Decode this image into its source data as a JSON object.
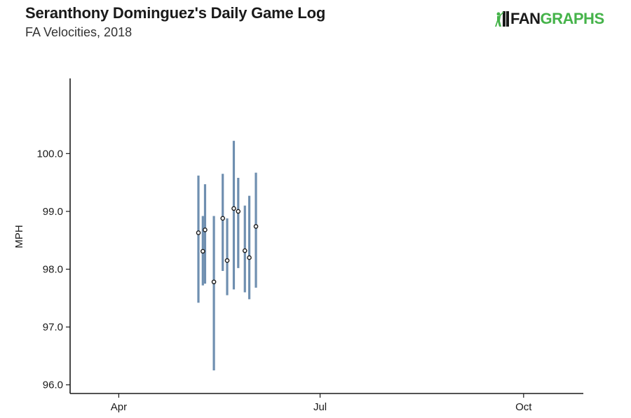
{
  "header": {
    "title": "Seranthony Dominguez's Daily Game Log",
    "subtitle": "FA Velocities, 2018"
  },
  "logo": {
    "text_fan": "FAN",
    "text_graphs": "GRAPHS",
    "icon": "batter-silhouette-icon",
    "colors": {
      "fan": "#1a1a1a",
      "graphs": "#45b34a"
    }
  },
  "chart_data": {
    "type": "errorbar",
    "title": "Seranthony Dominguez's Daily Game Log",
    "subtitle": "FA Velocities, 2018",
    "xlabel": "",
    "ylabel": "MPH",
    "x_ticks": [
      "Apr",
      "Jul",
      "Oct"
    ],
    "y_ticks": [
      "96.0",
      "97.0",
      "98.0",
      "99.0",
      "100.0"
    ],
    "ylim": [
      95.85,
      101.3
    ],
    "x_range": [
      "2018-03-10",
      "2018-10-28"
    ],
    "x_tick_dates": [
      "2018-04-01",
      "2018-07-01",
      "2018-10-01"
    ],
    "colors": {
      "bar": "#6f8fb0",
      "point": "#1a1a1a",
      "axis": "#1a1a1a"
    },
    "points": [
      {
        "x": "2018-05-07",
        "mean": 98.63,
        "low": 97.42,
        "high": 99.62
      },
      {
        "x": "2018-05-09",
        "mean": 98.31,
        "low": 97.72,
        "high": 98.92
      },
      {
        "x": "2018-05-10",
        "mean": 98.68,
        "low": 97.75,
        "high": 99.47
      },
      {
        "x": "2018-05-14",
        "mean": 97.78,
        "low": 96.25,
        "high": 98.92
      },
      {
        "x": "2018-05-18",
        "mean": 98.88,
        "low": 97.97,
        "high": 99.65
      },
      {
        "x": "2018-05-20",
        "mean": 98.15,
        "low": 97.55,
        "high": 98.88
      },
      {
        "x": "2018-05-23",
        "mean": 99.05,
        "low": 97.65,
        "high": 100.22
      },
      {
        "x": "2018-05-25",
        "mean": 99.0,
        "low": 98.02,
        "high": 99.58
      },
      {
        "x": "2018-05-28",
        "mean": 98.32,
        "low": 97.6,
        "high": 99.1
      },
      {
        "x": "2018-05-30",
        "mean": 98.2,
        "low": 97.48,
        "high": 99.27
      },
      {
        "x": "2018-06-02",
        "mean": 98.74,
        "low": 97.68,
        "high": 99.67
      }
    ]
  }
}
